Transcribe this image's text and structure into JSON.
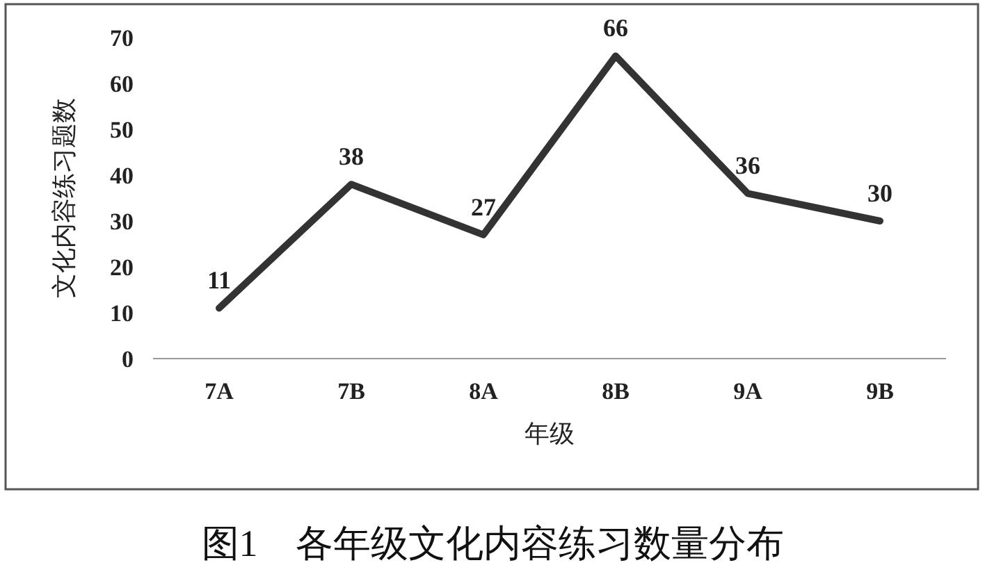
{
  "chart_data": {
    "type": "line",
    "title": "图1　各年级文化内容练习数量分布",
    "xlabel": "年级",
    "ylabel": "文化内容练习题数",
    "categories": [
      "7A",
      "7B",
      "8A",
      "8B",
      "9A",
      "9B"
    ],
    "series": [
      {
        "color": "#333333",
        "values": [
          11,
          38,
          27,
          66,
          36,
          30
        ]
      }
    ],
    "ylim": [
      0,
      70
    ],
    "yticks": [
      0,
      10,
      20,
      30,
      40,
      50,
      60,
      70
    ],
    "data_labels": true,
    "marker": "none",
    "grid": false
  }
}
